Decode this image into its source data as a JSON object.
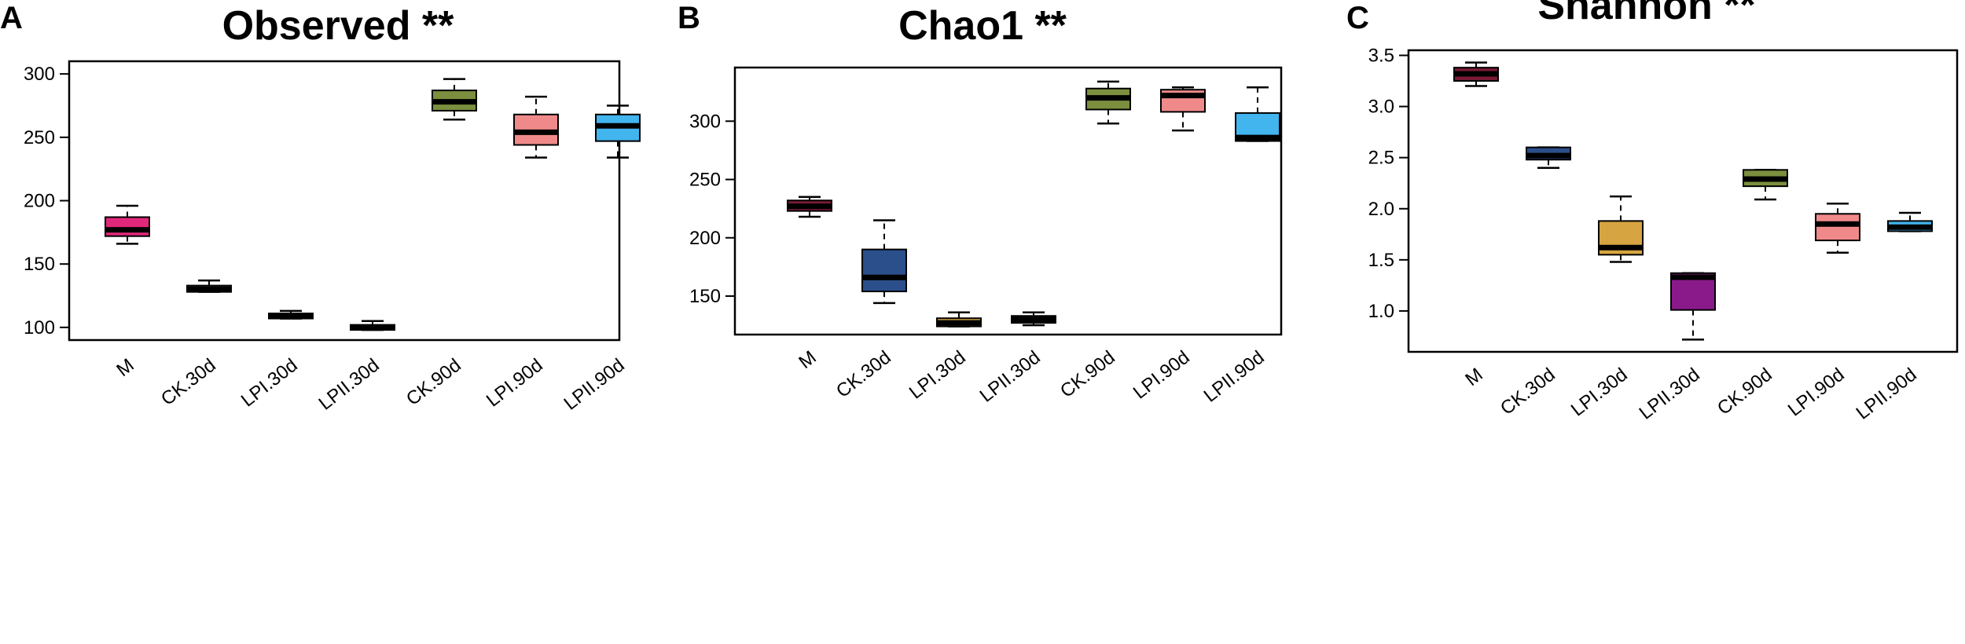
{
  "chart_data": [
    {
      "type": "boxplot",
      "panel": "A",
      "title": "Observed **",
      "categories": [
        "M",
        "CK.30d",
        "LPI.30d",
        "LPII.30d",
        "CK.90d",
        "LPI.90d",
        "LPII.90d"
      ],
      "colors": [
        "#e0287a",
        "#333333",
        "#333333",
        "#333333",
        "#7c8f3f",
        "#f08a8a",
        "#42b4ee"
      ],
      "boxes": [
        {
          "min": 166,
          "q1": 172,
          "median": 177,
          "q3": 187,
          "max": 196
        },
        {
          "min": 128,
          "q1": 128,
          "median": 130,
          "q3": 133,
          "max": 137
        },
        {
          "min": 107,
          "q1": 107,
          "median": 109,
          "q3": 111,
          "max": 113
        },
        {
          "min": 98,
          "q1": 98,
          "median": 100,
          "q3": 102,
          "max": 105
        },
        {
          "min": 264,
          "q1": 271,
          "median": 278,
          "q3": 287,
          "max": 296
        },
        {
          "min": 234,
          "q1": 244,
          "median": 254,
          "q3": 268,
          "max": 282
        },
        {
          "min": 234,
          "q1": 247,
          "median": 259,
          "q3": 268,
          "max": 275
        }
      ],
      "yticks": [
        "100",
        "150",
        "200",
        "250",
        "300"
      ],
      "ylim": [
        90,
        310
      ]
    },
    {
      "type": "boxplot",
      "panel": "B",
      "title": "Chao1 **",
      "categories": [
        "M",
        "CK.30d",
        "LPI.30d",
        "LPII.30d",
        "CK.90d",
        "LPI.90d",
        "LPII.90d"
      ],
      "colors": [
        "#7a1a35",
        "#2a4f8a",
        "#d6a440",
        "#333333",
        "#7c8f3f",
        "#f08a8a",
        "#42b4ee"
      ],
      "boxes": [
        {
          "min": 218,
          "q1": 223,
          "median": 227,
          "q3": 232,
          "max": 235
        },
        {
          "min": 144,
          "q1": 154,
          "median": 166,
          "q3": 190,
          "max": 215
        },
        {
          "min": 124,
          "q1": 124,
          "median": 127,
          "q3": 131,
          "max": 136
        },
        {
          "min": 125,
          "q1": 127,
          "median": 130,
          "q3": 133,
          "max": 136
        },
        {
          "min": 298,
          "q1": 310,
          "median": 320,
          "q3": 328,
          "max": 334
        },
        {
          "min": 292,
          "q1": 308,
          "median": 322,
          "q3": 327,
          "max": 329
        },
        {
          "min": 283,
          "q1": 283,
          "median": 286,
          "q3": 307,
          "max": 329
        }
      ],
      "yticks": [
        "150",
        "200",
        "250",
        "300"
      ],
      "ylim": [
        117,
        346
      ]
    },
    {
      "type": "boxplot",
      "panel": "C",
      "title": "Shannon **",
      "categories": [
        "M",
        "CK.30d",
        "LPI.30d",
        "LPII.30d",
        "CK.90d",
        "LPI.90d",
        "LPII.90d"
      ],
      "colors": [
        "#7a1a35",
        "#2a4f8a",
        "#d6a440",
        "#8a1a8a",
        "#7c8f3f",
        "#f08a8a",
        "#42b4ee"
      ],
      "boxes": [
        {
          "min": 3.2,
          "q1": 3.25,
          "median": 3.32,
          "q3": 3.38,
          "max": 3.43
        },
        {
          "min": 2.4,
          "q1": 2.48,
          "median": 2.52,
          "q3": 2.6,
          "max": 2.6
        },
        {
          "min": 1.48,
          "q1": 1.55,
          "median": 1.62,
          "q3": 1.88,
          "max": 2.12
        },
        {
          "min": 0.72,
          "q1": 1.01,
          "median": 1.33,
          "q3": 1.37,
          "max": 1.37
        },
        {
          "min": 2.09,
          "q1": 2.22,
          "median": 2.29,
          "q3": 2.38,
          "max": 2.38
        },
        {
          "min": 1.57,
          "q1": 1.69,
          "median": 1.85,
          "q3": 1.95,
          "max": 2.05
        },
        {
          "min": 1.78,
          "q1": 1.78,
          "median": 1.82,
          "q3": 1.88,
          "max": 1.96
        }
      ],
      "yticks": [
        "1.0",
        "1.5",
        "2.0",
        "2.5",
        "3.0",
        "3.5"
      ],
      "ylim": [
        0.6,
        3.55
      ]
    }
  ]
}
